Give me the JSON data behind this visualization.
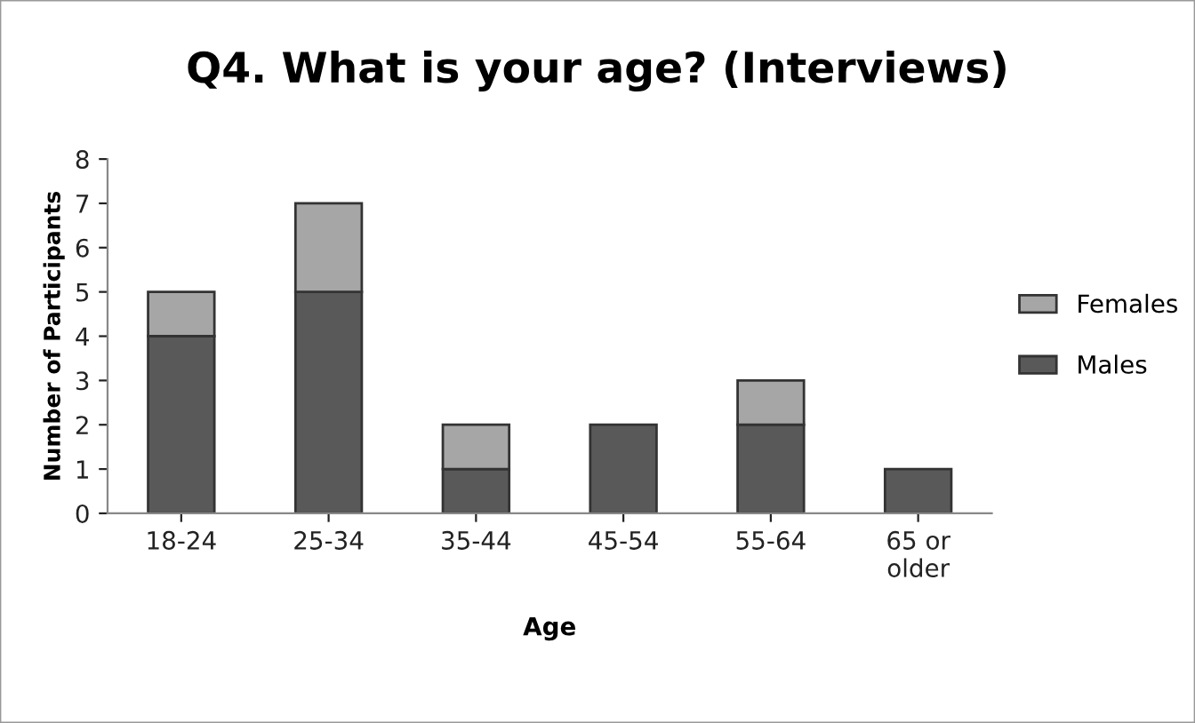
{
  "chart_data": {
    "type": "bar",
    "title": "Q4. What is your age? (Interviews)",
    "xlabel": "Age",
    "ylabel": "Number of Participants",
    "categories": [
      "18-24",
      "25-34",
      "35-44",
      "45-54",
      "55-64",
      "65 or\nolder"
    ],
    "stacked": true,
    "series": [
      {
        "name": "Males",
        "color": "#595959",
        "values": [
          4,
          5,
          1,
          2,
          2,
          1
        ]
      },
      {
        "name": "Females",
        "color": "#a6a6a6",
        "values": [
          1,
          2,
          1,
          null,
          1,
          null
        ]
      }
    ],
    "ylim": [
      0,
      8
    ],
    "yticks": [
      0,
      1,
      2,
      3,
      4,
      5,
      6,
      7,
      8
    ],
    "grid": false,
    "legend": "right"
  }
}
